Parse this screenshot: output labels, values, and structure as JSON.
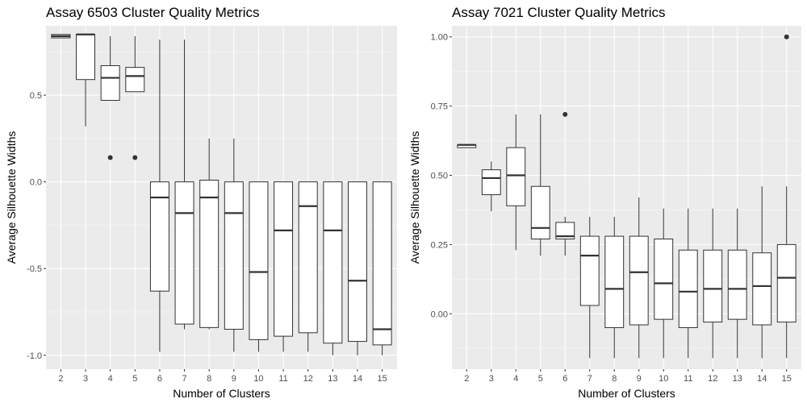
{
  "chart_data": [
    {
      "type": "box",
      "title": "Assay 6503 Cluster Quality Metrics",
      "xlabel": "Number of Clusters",
      "ylabel": "Average Silhouette Widths",
      "ylim": [
        -1.08,
        0.9
      ],
      "yticks": [
        -1.0,
        -0.5,
        0.0,
        0.5
      ],
      "ytick_labels": [
        "-1.0",
        "-0.5",
        "0.0",
        "0.5"
      ],
      "categories": [
        "2",
        "3",
        "4",
        "5",
        "6",
        "7",
        "8",
        "9",
        "10",
        "11",
        "12",
        "13",
        "14",
        "15"
      ],
      "boxes": [
        {
          "category": "2",
          "whisker_low": 0.83,
          "q1": 0.83,
          "median": 0.84,
          "q3": 0.85,
          "whisker_high": 0.85,
          "outliers": []
        },
        {
          "category": "3",
          "whisker_low": 0.32,
          "q1": 0.59,
          "median": 0.85,
          "q3": 0.85,
          "whisker_high": 0.85,
          "outliers": []
        },
        {
          "category": "4",
          "whisker_low": 0.47,
          "q1": 0.47,
          "median": 0.6,
          "q3": 0.67,
          "whisker_high": 0.84,
          "outliers": [
            0.14
          ]
        },
        {
          "category": "5",
          "whisker_low": 0.52,
          "q1": 0.52,
          "median": 0.61,
          "q3": 0.66,
          "whisker_high": 0.84,
          "outliers": [
            0.14
          ]
        },
        {
          "category": "6",
          "whisker_low": -0.98,
          "q1": -0.63,
          "median": -0.09,
          "q3": 0.0,
          "whisker_high": 0.82,
          "outliers": []
        },
        {
          "category": "7",
          "whisker_low": -0.85,
          "q1": -0.82,
          "median": -0.18,
          "q3": 0.0,
          "whisker_high": 0.82,
          "outliers": []
        },
        {
          "category": "8",
          "whisker_low": -0.85,
          "q1": -0.84,
          "median": -0.09,
          "q3": 0.01,
          "whisker_high": 0.25,
          "outliers": []
        },
        {
          "category": "9",
          "whisker_low": -0.98,
          "q1": -0.85,
          "median": -0.18,
          "q3": 0.0,
          "whisker_high": 0.25,
          "outliers": []
        },
        {
          "category": "10",
          "whisker_low": -0.98,
          "q1": -0.91,
          "median": -0.52,
          "q3": 0.0,
          "whisker_high": 0.0,
          "outliers": []
        },
        {
          "category": "11",
          "whisker_low": -0.98,
          "q1": -0.89,
          "median": -0.28,
          "q3": 0.0,
          "whisker_high": 0.0,
          "outliers": []
        },
        {
          "category": "12",
          "whisker_low": -0.98,
          "q1": -0.87,
          "median": -0.14,
          "q3": 0.0,
          "whisker_high": 0.0,
          "outliers": []
        },
        {
          "category": "13",
          "whisker_low": -1.0,
          "q1": -0.93,
          "median": -0.28,
          "q3": 0.0,
          "whisker_high": 0.0,
          "outliers": []
        },
        {
          "category": "14",
          "whisker_low": -1.0,
          "q1": -0.92,
          "median": -0.57,
          "q3": 0.0,
          "whisker_high": 0.0,
          "outliers": []
        },
        {
          "category": "15",
          "whisker_low": -1.0,
          "q1": -0.94,
          "median": -0.85,
          "q3": 0.0,
          "whisker_high": 0.0,
          "outliers": []
        }
      ],
      "grid": true,
      "legend": "none"
    },
    {
      "type": "box",
      "title": "Assay 7021 Cluster Quality Metrics",
      "xlabel": "Number of Clusters",
      "ylabel": "Average Silhouette Widths",
      "ylim": [
        -0.2,
        1.04
      ],
      "yticks": [
        0.0,
        0.25,
        0.5,
        0.75,
        1.0
      ],
      "ytick_labels": [
        "0.00",
        "0.25",
        "0.50",
        "0.75",
        "1.00"
      ],
      "categories": [
        "2",
        "3",
        "4",
        "5",
        "6",
        "7",
        "8",
        "9",
        "10",
        "11",
        "12",
        "13",
        "14",
        "15"
      ],
      "boxes": [
        {
          "category": "2",
          "whisker_low": 0.6,
          "q1": 0.6,
          "median": 0.61,
          "q3": 0.61,
          "whisker_high": 0.61,
          "outliers": []
        },
        {
          "category": "3",
          "whisker_low": 0.37,
          "q1": 0.43,
          "median": 0.49,
          "q3": 0.52,
          "whisker_high": 0.55,
          "outliers": []
        },
        {
          "category": "4",
          "whisker_low": 0.23,
          "q1": 0.39,
          "median": 0.5,
          "q3": 0.6,
          "whisker_high": 0.72,
          "outliers": []
        },
        {
          "category": "5",
          "whisker_low": 0.21,
          "q1": 0.27,
          "median": 0.31,
          "q3": 0.46,
          "whisker_high": 0.72,
          "outliers": []
        },
        {
          "category": "6",
          "whisker_low": 0.21,
          "q1": 0.27,
          "median": 0.28,
          "q3": 0.33,
          "whisker_high": 0.35,
          "outliers": [
            0.72
          ]
        },
        {
          "category": "7",
          "whisker_low": -0.16,
          "q1": 0.03,
          "median": 0.21,
          "q3": 0.28,
          "whisker_high": 0.35,
          "outliers": []
        },
        {
          "category": "8",
          "whisker_low": -0.16,
          "q1": -0.05,
          "median": 0.09,
          "q3": 0.28,
          "whisker_high": 0.35,
          "outliers": []
        },
        {
          "category": "9",
          "whisker_low": -0.16,
          "q1": -0.04,
          "median": 0.15,
          "q3": 0.28,
          "whisker_high": 0.42,
          "outliers": []
        },
        {
          "category": "10",
          "whisker_low": -0.16,
          "q1": -0.02,
          "median": 0.11,
          "q3": 0.27,
          "whisker_high": 0.38,
          "outliers": []
        },
        {
          "category": "11",
          "whisker_low": -0.16,
          "q1": -0.05,
          "median": 0.08,
          "q3": 0.23,
          "whisker_high": 0.38,
          "outliers": []
        },
        {
          "category": "12",
          "whisker_low": -0.16,
          "q1": -0.03,
          "median": 0.09,
          "q3": 0.23,
          "whisker_high": 0.38,
          "outliers": []
        },
        {
          "category": "13",
          "whisker_low": -0.16,
          "q1": -0.02,
          "median": 0.09,
          "q3": 0.23,
          "whisker_high": 0.38,
          "outliers": []
        },
        {
          "category": "14",
          "whisker_low": -0.16,
          "q1": -0.04,
          "median": 0.1,
          "q3": 0.22,
          "whisker_high": 0.46,
          "outliers": []
        },
        {
          "category": "15",
          "whisker_low": -0.16,
          "q1": -0.03,
          "median": 0.13,
          "q3": 0.25,
          "whisker_high": 0.46,
          "outliers": [
            1.0
          ]
        }
      ],
      "grid": true,
      "legend": "none"
    }
  ],
  "colors": {
    "panel_background": "#ebebeb",
    "major_grid": "#ffffff",
    "minor_grid": "#f3f3f3",
    "box_fill": "#ffffff",
    "box_line": "#333333",
    "tick_text": "#4d4d4d",
    "text": "#000000"
  }
}
